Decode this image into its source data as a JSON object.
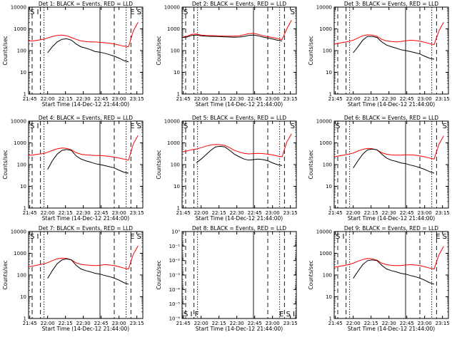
{
  "figure": {
    "panels": [
      {
        "title": "Det 1: BLACK = Events, RED = LLD",
        "marker_left": "S I",
        "marker_right": "E S"
      },
      {
        "title": "Det 2: BLACK = Events, RED = LLD",
        "marker_left": "S",
        "marker_right": "S"
      },
      {
        "title": "Det 3: BLACK = Events, RED = LLD",
        "marker_left": "",
        "marker_right": ""
      },
      {
        "title": "Det 4: BLACK = Events, RED = LLD",
        "marker_left": "S I",
        "marker_right": "E S"
      },
      {
        "title": "Det 5: BLACK = Events, RED = LLD",
        "marker_left": "S",
        "marker_right": "S"
      },
      {
        "title": "Det 6: BLACK = Events, RED = LLD",
        "marker_left": "S",
        "marker_right": "S"
      },
      {
        "title": "Det 7: BLACK = Events, RED = LLD",
        "marker_left": "S I",
        "marker_right": "E S"
      },
      {
        "title": "Det 8: BLACK = Events, RED = LLD",
        "marker_left": "S I F",
        "marker_right": "E S I"
      },
      {
        "title": "Det 9: BLACK = Events, RED = LLD",
        "marker_left": "S I",
        "marker_right": "E S"
      }
    ],
    "ylabel": "Counts/sec",
    "xlabel": "Start Time (14-Dec-12 21:44:00)",
    "xticks": [
      "21:45",
      "22:00",
      "22:15",
      "22:30",
      "22:45",
      "23:00",
      "23:15"
    ],
    "yticks_normal": [
      "1",
      "10",
      "100",
      "1000",
      "10000"
    ],
    "yticks_det8": [
      "10⁰",
      "10⁻¹",
      "10⁻²",
      "10⁻³",
      "10⁻⁴",
      "10⁻⁵",
      "10⁻⁶"
    ],
    "colors": {
      "events": "#000000",
      "lld": "#ff0000"
    }
  },
  "chart_data": {
    "type": "line",
    "title": "Det 1–9: BLACK = Events, RED = LLD",
    "xlabel": "Start Time (14-Dec-12 21:44:00)",
    "ylabel": "Counts/sec",
    "yscale": "log",
    "xlim": [
      "21:44",
      "23:20"
    ],
    "ylim": [
      1,
      10000
    ],
    "x": [
      "21:44",
      "21:48",
      "21:52",
      "21:56",
      "22:00",
      "22:04",
      "22:08",
      "22:12",
      "22:16",
      "22:20",
      "22:24",
      "22:28",
      "22:32",
      "22:36",
      "22:40",
      "22:44",
      "22:48",
      "22:52",
      "22:56",
      "23:00",
      "23:04",
      "23:08",
      "23:12",
      "23:16"
    ],
    "series": [
      {
        "name": "Det 1 Events",
        "color": "#000000",
        "values": [
          null,
          null,
          null,
          null,
          80,
          150,
          250,
          330,
          350,
          300,
          200,
          150,
          130,
          110,
          90,
          85,
          75,
          65,
          55,
          45,
          35,
          30,
          null,
          null
        ]
      },
      {
        "name": "Det 1 LLD",
        "color": "#ff0000",
        "values": [
          280,
          280,
          300,
          330,
          380,
          450,
          500,
          520,
          480,
          400,
          330,
          280,
          260,
          250,
          250,
          240,
          230,
          220,
          200,
          180,
          160,
          150,
          800,
          2000
        ]
      },
      {
        "name": "Det 2 Events",
        "color": "#000000",
        "values": [
          400,
          420,
          500,
          520,
          480,
          460,
          450,
          450,
          440,
          430,
          420,
          410,
          420,
          450,
          500,
          520,
          480,
          420,
          380,
          340,
          300,
          280,
          null,
          null
        ]
      },
      {
        "name": "Det 2 LLD",
        "color": "#ff0000",
        "values": [
          420,
          450,
          560,
          580,
          520,
          500,
          490,
          480,
          470,
          460,
          460,
          460,
          480,
          530,
          600,
          620,
          560,
          480,
          440,
          400,
          360,
          320,
          1000,
          2500
        ]
      },
      {
        "name": "Det 3 Events",
        "color": "#000000",
        "values": [
          null,
          null,
          null,
          null,
          80,
          150,
          300,
          450,
          450,
          400,
          250,
          180,
          150,
          130,
          110,
          100,
          90,
          80,
          70,
          55,
          45,
          40,
          null,
          null
        ]
      },
      {
        "name": "Det 3 LLD",
        "color": "#ff0000",
        "values": [
          200,
          220,
          240,
          260,
          300,
          380,
          480,
          530,
          520,
          450,
          330,
          280,
          260,
          250,
          260,
          280,
          300,
          290,
          270,
          240,
          210,
          190,
          800,
          2000
        ]
      },
      {
        "name": "Det 4 Events",
        "color": "#000000",
        "values": [
          null,
          null,
          null,
          null,
          60,
          150,
          300,
          450,
          500,
          450,
          250,
          180,
          150,
          130,
          110,
          100,
          90,
          80,
          70,
          55,
          45,
          40,
          null,
          null
        ]
      },
      {
        "name": "Det 4 LLD",
        "color": "#ff0000",
        "values": [
          260,
          280,
          300,
          320,
          370,
          450,
          530,
          580,
          560,
          480,
          350,
          300,
          280,
          270,
          260,
          260,
          250,
          240,
          220,
          200,
          180,
          160,
          900,
          2200
        ]
      },
      {
        "name": "Det 5 Events",
        "color": "#000000",
        "values": [
          null,
          null,
          null,
          120,
          180,
          280,
          450,
          650,
          700,
          650,
          450,
          300,
          230,
          180,
          160,
          170,
          180,
          170,
          150,
          120,
          100,
          90,
          null,
          null
        ]
      },
      {
        "name": "Det 5 LLD",
        "color": "#ff0000",
        "values": [
          380,
          420,
          480,
          520,
          600,
          700,
          800,
          850,
          820,
          760,
          600,
          450,
          380,
          330,
          310,
          320,
          330,
          320,
          300,
          280,
          250,
          230,
          1100,
          2600
        ]
      },
      {
        "name": "Det 6 Events",
        "color": "#000000",
        "values": [
          null,
          null,
          null,
          null,
          70,
          150,
          300,
          480,
          520,
          480,
          300,
          200,
          160,
          140,
          120,
          110,
          95,
          85,
          72,
          60,
          48,
          40,
          null,
          null
        ]
      },
      {
        "name": "Det 6 LLD",
        "color": "#ff0000",
        "values": [
          230,
          250,
          270,
          300,
          340,
          420,
          500,
          560,
          540,
          470,
          350,
          300,
          280,
          270,
          270,
          280,
          280,
          270,
          250,
          230,
          200,
          180,
          850,
          2100
        ]
      },
      {
        "name": "Det 7 Events",
        "color": "#000000",
        "values": [
          null,
          null,
          null,
          null,
          70,
          160,
          330,
          500,
          550,
          500,
          280,
          190,
          160,
          140,
          120,
          110,
          95,
          85,
          72,
          58,
          45,
          38,
          null,
          null
        ]
      },
      {
        "name": "Det 7 LLD",
        "color": "#ff0000",
        "values": [
          240,
          260,
          290,
          320,
          370,
          460,
          560,
          600,
          580,
          500,
          360,
          310,
          290,
          280,
          270,
          280,
          300,
          290,
          270,
          240,
          210,
          190,
          900,
          2200
        ]
      },
      {
        "name": "Det 9 Events",
        "color": "#000000",
        "values": [
          null,
          null,
          null,
          null,
          70,
          150,
          300,
          460,
          500,
          460,
          280,
          190,
          160,
          140,
          120,
          110,
          95,
          85,
          72,
          58,
          45,
          38,
          null,
          null
        ]
      },
      {
        "name": "Det 9 LLD",
        "color": "#ff0000",
        "values": [
          230,
          250,
          270,
          300,
          350,
          430,
          520,
          580,
          560,
          480,
          350,
          300,
          280,
          270,
          270,
          290,
          300,
          290,
          270,
          240,
          210,
          190,
          850,
          2100
        ]
      }
    ]
  }
}
